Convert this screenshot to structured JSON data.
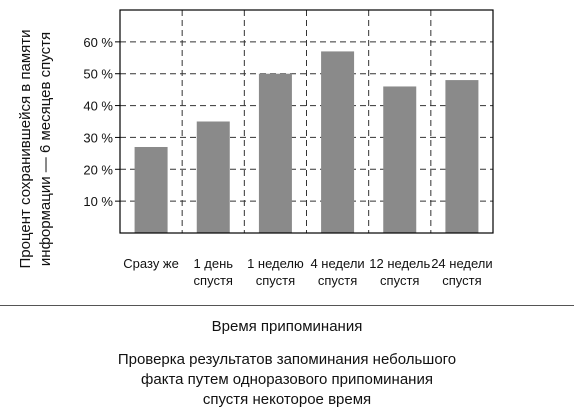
{
  "chart_data": {
    "type": "bar",
    "categories": [
      [
        "Сразу же"
      ],
      [
        "1 день",
        "спустя"
      ],
      [
        "1 неделю",
        "спустя"
      ],
      [
        "4 недели",
        "спустя"
      ],
      [
        "12 недель",
        "спустя"
      ],
      [
        "24 недели",
        "спустя"
      ]
    ],
    "values": [
      27,
      35,
      50,
      57,
      46,
      48
    ],
    "ylabel_lines": [
      "Процент сохранившейся в памяти",
      "информации — 6 месяцев спустя"
    ],
    "xlabel": "Время припоминания",
    "ylim": [
      0,
      70
    ],
    "yticks": [
      10,
      20,
      30,
      40,
      50,
      60
    ],
    "ytick_labels": [
      "10 %",
      "20 %",
      "30 %",
      "40 %",
      "50 %",
      "60 %"
    ],
    "grid": true,
    "bar_color": "#8a8a8a"
  },
  "caption": [
    "Проверка результатов запоминания небольшого",
    "факта путем одноразового припоминания",
    "спустя некоторое время"
  ]
}
